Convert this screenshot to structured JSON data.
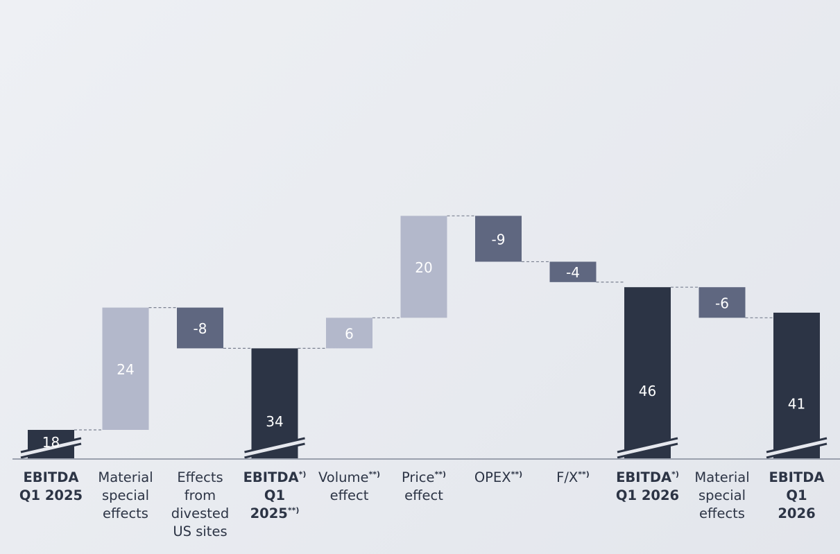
{
  "chart_data": {
    "type": "waterfall",
    "colors": {
      "total": "#2c3445",
      "increase": "#b3b8cb",
      "decrease": "#5f6780",
      "bar_label": "#ffffff",
      "axis_text": "#2c3445",
      "connector": "#7a8090"
    },
    "axis_break_on_totals": true,
    "categories": [
      {
        "label": "EBITDA\nQ1 2025",
        "sup": "",
        "kind": "total",
        "value": 18,
        "value_label": "18"
      },
      {
        "label": "Material\nspecial\neffects",
        "sup": "",
        "kind": "increase",
        "value": 24,
        "value_label": "24"
      },
      {
        "label": "Effects\nfrom\ndivested\nUS sites",
        "sup": "",
        "kind": "decrease",
        "value": -8,
        "value_label": "-8"
      },
      {
        "label": "EBITDA\nQ1\n2025",
        "sup": "*)|**)",
        "kind": "total",
        "value": 34,
        "value_label": "34"
      },
      {
        "label": "Volume\neffect",
        "sup": "**)",
        "kind": "increase",
        "value": 6,
        "value_label": "6"
      },
      {
        "label": "Price\neffect",
        "sup": "**)",
        "kind": "increase",
        "value": 20,
        "value_label": "20"
      },
      {
        "label": "OPEX",
        "sup": "**)",
        "kind": "decrease",
        "value": -9,
        "value_label": "-9"
      },
      {
        "label": "F/X",
        "sup": "**)",
        "kind": "decrease",
        "value": -4,
        "value_label": "-4"
      },
      {
        "label": "EBITDA\nQ1 2026",
        "sup": "*)",
        "kind": "total",
        "value": 46,
        "value_label": "46"
      },
      {
        "label": "Material\nspecial\neffects",
        "sup": "",
        "kind": "decrease",
        "value": -6,
        "value_label": "-6"
      },
      {
        "label": "EBITDA\nQ1\n2026",
        "sup": "",
        "kind": "total",
        "value": 41,
        "value_label": "41"
      }
    ]
  }
}
